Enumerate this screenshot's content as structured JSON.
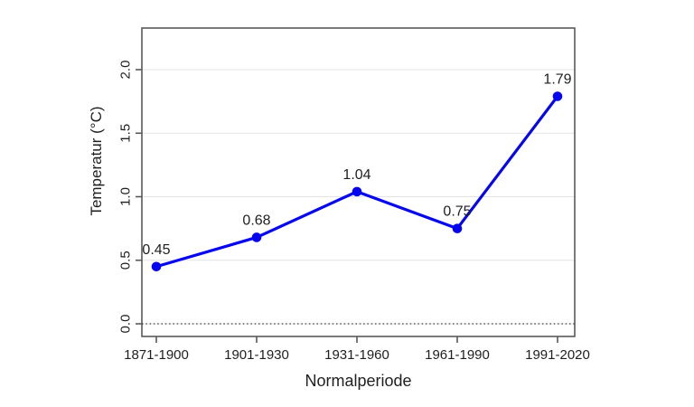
{
  "page": {
    "background": "#ffffff"
  },
  "chart_data": {
    "type": "line",
    "title": "",
    "xlabel": "Normalperiode",
    "ylabel": "Temperatur (°C)",
    "categories": [
      "1871-1900",
      "1901-1930",
      "1931-1960",
      "1961-1990",
      "1991-2020"
    ],
    "series": [
      {
        "name": "Temperatur",
        "values": [
          0.45,
          0.68,
          1.04,
          0.75,
          1.79
        ],
        "color": "#0505f0",
        "marker": "filled-circle"
      }
    ],
    "point_labels": [
      "0.45",
      "0.68",
      "1.04",
      "0.75",
      "1.79"
    ],
    "y_ticks": [
      0.0,
      0.5,
      1.0,
      1.5,
      2.0
    ],
    "y_tick_labels": [
      "0.0",
      "0.5",
      "1.0",
      "1.5",
      "2.0"
    ],
    "ylim": [
      -0.1,
      2.33
    ],
    "grid": "horizontal-light",
    "legend": "none",
    "zero_reference_line": "dotted",
    "colors": {
      "line": "#0505f0",
      "grid": "#e4e4e4",
      "axis": "#595959",
      "text": "#1f1f1f",
      "zero_line": "#3c3c3c"
    }
  }
}
